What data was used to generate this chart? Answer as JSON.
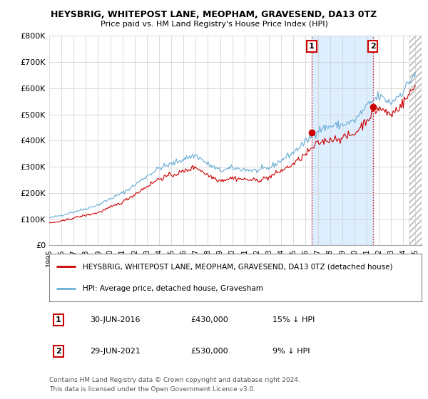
{
  "title": "HEYSBRIG, WHITEPOST LANE, MEOPHAM, GRAVESEND, DA13 0TZ",
  "subtitle": "Price paid vs. HM Land Registry's House Price Index (HPI)",
  "ylim": [
    0,
    800000
  ],
  "yticks": [
    0,
    100000,
    200000,
    300000,
    400000,
    500000,
    600000,
    700000,
    800000
  ],
  "ytick_labels": [
    "£0",
    "£100K",
    "£200K",
    "£300K",
    "£400K",
    "£500K",
    "£600K",
    "£700K",
    "£800K"
  ],
  "hpi_color": "#6baed6",
  "price_color": "#cc0000",
  "shade_color": "#ddeeff",
  "sale1_x": 2016.5,
  "sale1_price": 430000,
  "sale1_label": "1",
  "sale1_date_str": "30-JUN-2016",
  "sale1_pct": "15% ↓ HPI",
  "sale2_x": 2021.5,
  "sale2_price": 530000,
  "sale2_label": "2",
  "sale2_date_str": "29-JUN-2021",
  "sale2_pct": "9% ↓ HPI",
  "legend_line1": "HEYSBRIG, WHITEPOST LANE, MEOPHAM, GRAVESEND, DA13 0TZ (detached house)",
  "legend_line2": "HPI: Average price, detached house, Gravesham",
  "footer1": "Contains HM Land Registry data © Crown copyright and database right 2024.",
  "footer2": "This data is licensed under the Open Government Licence v3.0.",
  "background_color": "#ffffff",
  "grid_color": "#cccccc",
  "xlim_left": 1995.0,
  "xlim_right": 2025.5
}
